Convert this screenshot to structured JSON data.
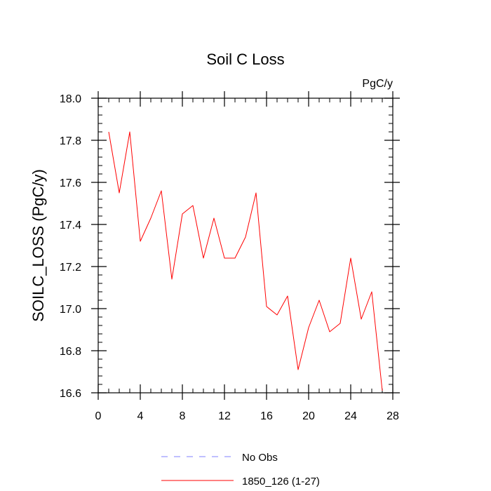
{
  "chart_data": {
    "type": "line",
    "title": "Soil C Loss",
    "units_label": "PgC/y",
    "xlabel": "",
    "ylabel": "SOILC_LOSS  (PgC/y)",
    "xlim": [
      0,
      28
    ],
    "ylim": [
      16.6,
      18.0
    ],
    "x_ticks": [
      0,
      4,
      8,
      12,
      16,
      20,
      24,
      28
    ],
    "x_tick_labels": [
      "0",
      "4",
      "8",
      "12",
      "16",
      "20",
      "24",
      "28"
    ],
    "x_minor_step": 1,
    "y_ticks": [
      16.6,
      16.8,
      17.0,
      17.2,
      17.4,
      17.6,
      17.8,
      18.0
    ],
    "y_tick_labels": [
      "16.6",
      "16.8",
      "17.0",
      "17.2",
      "17.4",
      "17.6",
      "17.8",
      "18.0"
    ],
    "y_minor_step": 0.04,
    "grid": false,
    "series": [
      {
        "name": "1850_126 (1-27)",
        "color": "#ff0000",
        "style": "solid",
        "x": [
          1,
          2,
          3,
          4,
          5,
          6,
          7,
          8,
          9,
          10,
          11,
          12,
          13,
          14,
          15,
          16,
          17,
          18,
          19,
          20,
          21,
          22,
          23,
          24,
          25,
          26,
          27
        ],
        "values": [
          17.84,
          17.55,
          17.84,
          17.32,
          17.43,
          17.56,
          17.14,
          17.45,
          17.49,
          17.24,
          17.43,
          17.24,
          17.24,
          17.34,
          17.55,
          17.01,
          16.97,
          17.06,
          16.71,
          16.91,
          17.04,
          16.89,
          16.93,
          17.24,
          16.95,
          17.08,
          16.61
        ]
      }
    ],
    "legend": {
      "position": "bottom",
      "entries": [
        {
          "label": "No Obs",
          "color": "#8080ff",
          "style": "dashed"
        },
        {
          "label": "1850_126 (1-27)",
          "color": "#ff0000",
          "style": "solid"
        }
      ]
    }
  }
}
